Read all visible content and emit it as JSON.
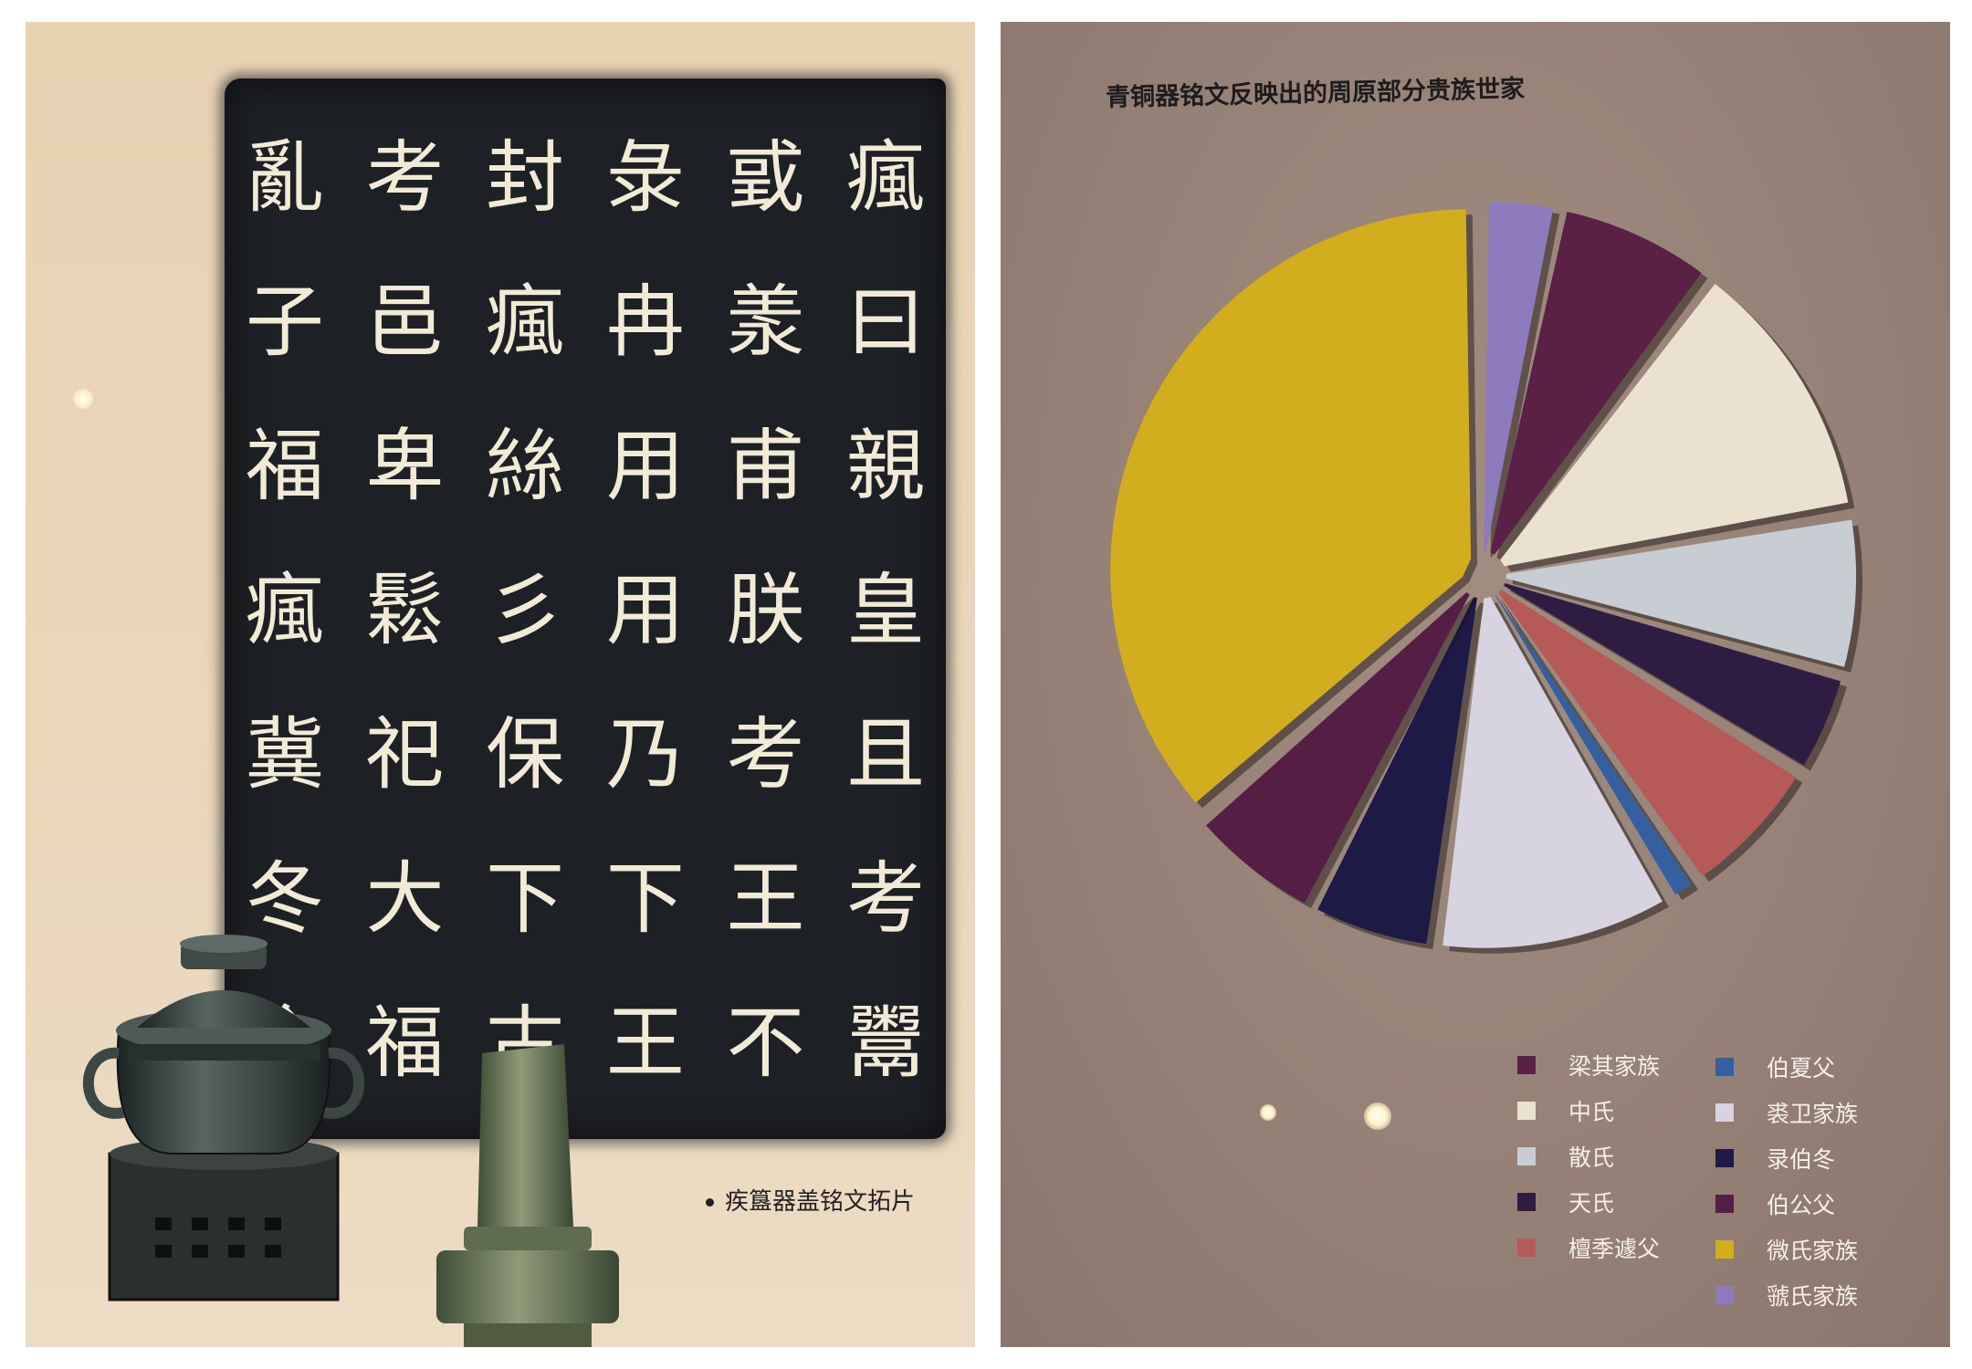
{
  "left_panel": {
    "caption": "疾簋器盖铭文拓片",
    "inscription_columns": [
      [
        "瘋",
        "曰",
        "親",
        "皇",
        "且",
        "考",
        "鬻"
      ],
      [
        "戜",
        "羕",
        "甫",
        "朕",
        "考",
        "王",
        "不"
      ],
      [
        "彔",
        "冉",
        "用",
        "用",
        "乃",
        "下",
        "王"
      ],
      [
        "封",
        "瘋",
        "絲",
        "彡",
        "保",
        "下",
        "古"
      ],
      [
        "考",
        "邑",
        "卑",
        "鬆",
        "祀",
        "大",
        "福"
      ],
      [
        "亂",
        "子",
        "福",
        "瘋",
        "冀",
        "冬",
        "今"
      ]
    ]
  },
  "right_panel": {
    "colors": {
      "liangqi": "#5a2045",
      "zhong": "#ebe1cf",
      "san": "#c7cdd3",
      "tian": "#2e1c42",
      "tanji": "#b65a58",
      "boxia": "#3560a0",
      "qiuwei": "#d7d3e0",
      "lubodong": "#1d1a48",
      "bogong": "#541e45",
      "wei": "#d2ad1e",
      "guo": "#8d7bbd"
    }
  },
  "chart_data": {
    "type": "pie",
    "title": "青铜器铭文反映出的周原部分贵族世家",
    "slices": [
      {
        "label": "虢氏家族",
        "value": 3.3,
        "color": "#8d7bbd"
      },
      {
        "label": "梁其家族",
        "value": 7.0,
        "color": "#5a2045"
      },
      {
        "label": "中氏",
        "value": 12.0,
        "color": "#ebe1cf"
      },
      {
        "label": "散氏",
        "value": 7.0,
        "color": "#c7cdd3"
      },
      {
        "label": "天氏",
        "value": 4.5,
        "color": "#2e1c42"
      },
      {
        "label": "檀季遽父",
        "value": 6.5,
        "color": "#b65a58"
      },
      {
        "label": "伯夏父",
        "value": 1.3,
        "color": "#3560a0"
      },
      {
        "label": "裘卫家族",
        "value": 10.5,
        "color": "#d7d3e0"
      },
      {
        "label": "录伯冬",
        "value": 5.5,
        "color": "#1d1a48"
      },
      {
        "label": "伯公父",
        "value": 6.0,
        "color": "#541e45"
      },
      {
        "label": "微氏家族",
        "value": 36.4,
        "color": "#d2ad1e"
      }
    ],
    "legend": {
      "placement": "bottom-right",
      "left_column": [
        "梁其家族",
        "中氏",
        "散氏",
        "天氏",
        "檀季遽父"
      ],
      "right_column": [
        "伯夏父",
        "裘卫家族",
        "录伯冬",
        "伯公父",
        "微氏家族",
        "虢氏家族"
      ]
    }
  }
}
